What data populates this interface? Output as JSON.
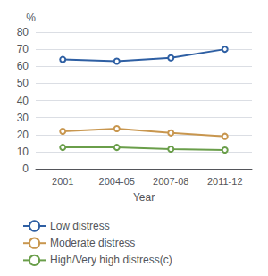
{
  "chart_data": {
    "type": "line",
    "xlabel": "Year",
    "ylabel": "%",
    "categories": [
      "2001",
      "2004-05",
      "2007-08",
      "2011-12"
    ],
    "series": [
      {
        "name": "Low distress",
        "color": "#2E5FA3",
        "values": [
          64.0,
          63.0,
          65.0,
          70.0
        ]
      },
      {
        "name": "Moderate distress",
        "color": "#C8964E",
        "values": [
          22.0,
          23.5,
          21.0,
          19.0
        ]
      },
      {
        "name": "High/Very high distress(c)",
        "color": "#6A9E4A",
        "values": [
          12.5,
          12.5,
          11.5,
          11.0
        ]
      }
    ],
    "ylim": [
      0,
      80
    ],
    "yticks": [
      0,
      10,
      20,
      30,
      40,
      50,
      60,
      70,
      80
    ],
    "grid": true,
    "legend": "bottom"
  }
}
